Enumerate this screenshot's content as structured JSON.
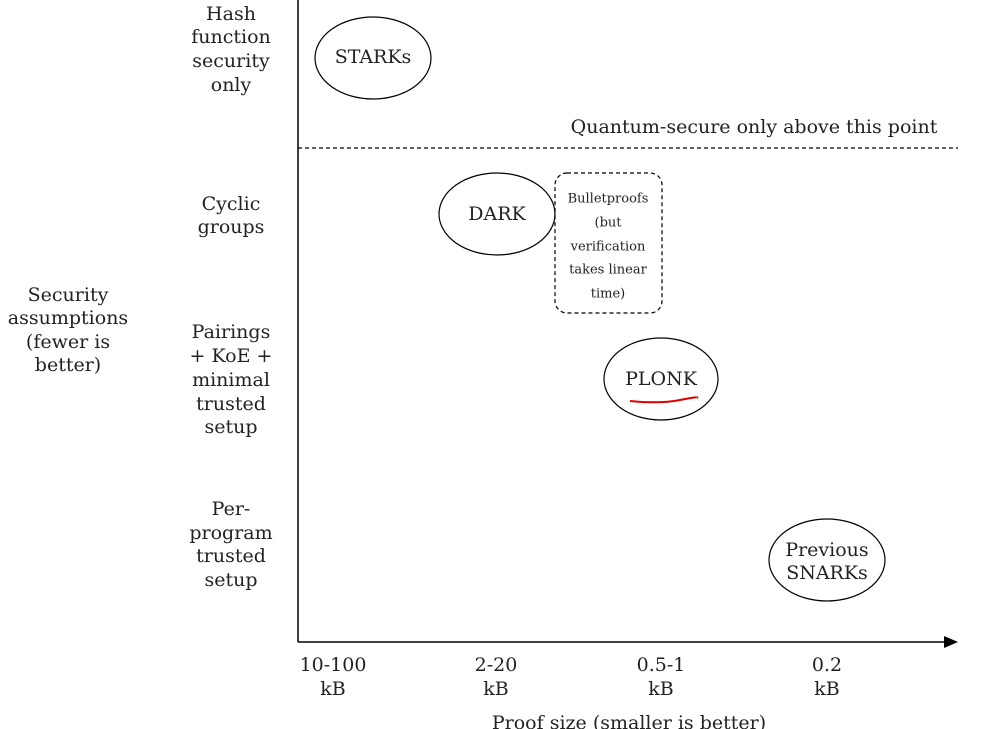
{
  "y_axis": {
    "label": [
      "Security",
      "assumptions",
      "(fewer is",
      "better)"
    ],
    "categories": [
      [
        "Hash",
        "function",
        "security",
        "only"
      ],
      [
        "Cyclic",
        "groups"
      ],
      [
        "Pairings",
        "+ KoE +",
        "minimal",
        "trusted",
        "setup"
      ],
      [
        "Per-",
        "program",
        "trusted",
        "setup"
      ]
    ]
  },
  "x_axis": {
    "label": "Proof size (smaller is better)",
    "categories": [
      [
        "10-100",
        "kB"
      ],
      [
        "2-20",
        "kB"
      ],
      [
        "0.5-1",
        "kB"
      ],
      [
        "0.2",
        "kB"
      ]
    ]
  },
  "divider_label": "Quantum-secure only above this point",
  "nodes": [
    {
      "label": [
        "STARKs"
      ]
    },
    {
      "label": [
        "DARK"
      ]
    },
    {
      "label": [
        "Bulletproofs",
        "(but",
        "verification",
        "takes linear",
        "time)"
      ]
    },
    {
      "label": [
        "PLONK"
      ]
    },
    {
      "label": [
        "Previous",
        "SNARKs"
      ]
    }
  ]
}
